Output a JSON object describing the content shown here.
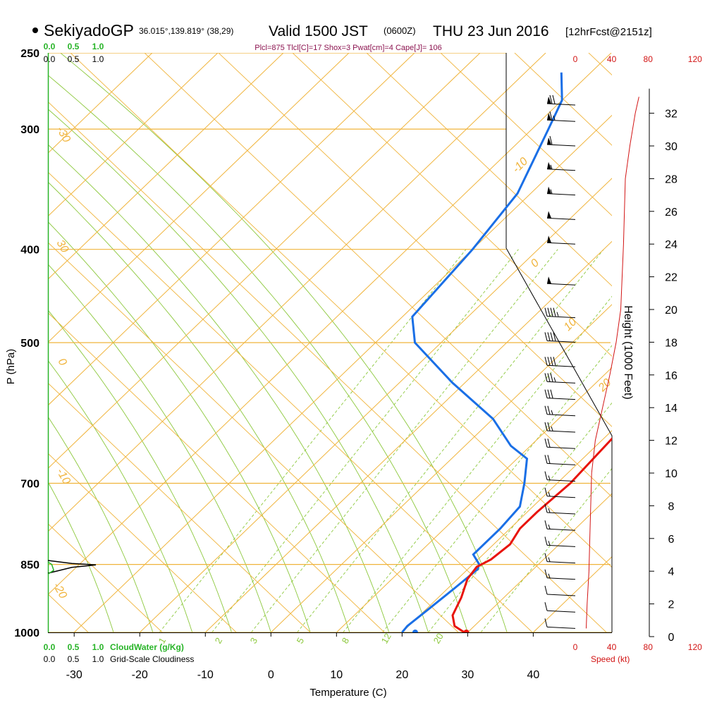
{
  "header": {
    "station": "SekiyadoGP",
    "coords": "36.015°,139.819° (38,29)",
    "valid_main": "Valid 1500 JST",
    "valid_z": "(0600Z)",
    "valid_date": "THU 23 Jun 2016",
    "fcst": "[12hrFcst@2151z]",
    "indices": "Plcl=875 Tlcl[C]=17 Shox=3 Pwat[cm]=4 Cape[J]= 106"
  },
  "colors": {
    "temp": "#e8140c",
    "dew": "#1a6fe6",
    "isotherm": "#f0b43c",
    "dry_adiabat": "#f0b43c",
    "moist_adiabat": "#8cc83c",
    "mixing": "#8cc83c",
    "parcel": "#8c1450",
    "cloud": "#28b428",
    "speed": "#d21414",
    "axis": "#000000"
  },
  "chart_data": {
    "type": "skewt",
    "title": "SekiyadoGP Valid 1500 JST (0600Z) THU 23 Jun 2016",
    "xlabel": "Temperature (C)",
    "ylabel": "P (hPa)",
    "xlim": [
      -34,
      52
    ],
    "ylim_hpa": [
      1000,
      250
    ],
    "x_ticks": [
      -30,
      -20,
      -10,
      0,
      10,
      20,
      30,
      40
    ],
    "p_ticks": [
      250,
      300,
      400,
      500,
      700,
      850,
      1000
    ],
    "isobars": [
      250,
      300,
      400,
      500,
      700,
      850,
      1000
    ],
    "isotherms": [
      -110,
      -100,
      -90,
      -80,
      -70,
      -60,
      -50,
      -40,
      -30,
      -20,
      -10,
      0,
      10,
      20,
      30,
      40
    ],
    "isotherm_labels": [
      {
        "text": "-10",
        "t": -10
      },
      {
        "text": "0",
        "t": 0
      },
      {
        "text": "10",
        "t": 10
      },
      {
        "text": "20",
        "t": 20
      },
      {
        "text": "30",
        "t": 30
      },
      {
        "text": "0",
        "t": 0
      },
      {
        "text": "-10",
        "t": -10
      },
      {
        "text": "-20",
        "t": -20
      },
      {
        "text": "-30",
        "t": -30
      }
    ],
    "mixing_ratio_labels": [
      {
        "text": "1",
        "w": 1
      },
      {
        "text": "2",
        "w": 2
      },
      {
        "text": "3",
        "w": 3
      },
      {
        "text": "5",
        "w": 5
      },
      {
        "text": "8",
        "w": 8
      },
      {
        "text": "12",
        "w": 12
      },
      {
        "text": "20",
        "w": 20
      }
    ],
    "temperature": {
      "name": "Temperature",
      "points": [
        {
          "p": 1000,
          "t": 29.5
        },
        {
          "p": 985,
          "t": 27.0
        },
        {
          "p": 960,
          "t": 25.0
        },
        {
          "p": 920,
          "t": 23.5
        },
        {
          "p": 880,
          "t": 21.5
        },
        {
          "p": 855,
          "t": 21.0
        },
        {
          "p": 840,
          "t": 22.0
        },
        {
          "p": 810,
          "t": 22.5
        },
        {
          "p": 780,
          "t": 21.5
        },
        {
          "p": 750,
          "t": 21.5
        },
        {
          "p": 700,
          "t": 22.0
        },
        {
          "p": 650,
          "t": 21.5
        },
        {
          "p": 600,
          "t": 21.0
        },
        {
          "p": 560,
          "t": 20.0
        },
        {
          "p": 500,
          "t": 17.0
        },
        {
          "p": 470,
          "t": 15.5
        },
        {
          "p": 400,
          "t": 10.5
        },
        {
          "p": 350,
          "t": 6.0
        },
        {
          "p": 300,
          "t": 1.0
        },
        {
          "p": 280,
          "t": -2.0
        },
        {
          "p": 262,
          "t": -4.5
        }
      ]
    },
    "dewpoint": {
      "name": "Dewpoint",
      "points": [
        {
          "p": 1000,
          "t": 20.0
        },
        {
          "p": 985,
          "t": 19.8
        },
        {
          "p": 950,
          "t": 20.3
        },
        {
          "p": 900,
          "t": 21.0
        },
        {
          "p": 860,
          "t": 21.5
        },
        {
          "p": 850,
          "t": 21.0
        },
        {
          "p": 830,
          "t": 18.5
        },
        {
          "p": 780,
          "t": 18.5
        },
        {
          "p": 740,
          "t": 18.0
        },
        {
          "p": 700,
          "t": 15.0
        },
        {
          "p": 660,
          "t": 11.5
        },
        {
          "p": 640,
          "t": 7.0
        },
        {
          "p": 600,
          "t": 0.0
        },
        {
          "p": 550,
          "t": -12.0
        },
        {
          "p": 500,
          "t": -24.0
        },
        {
          "p": 470,
          "t": -28.5
        },
        {
          "p": 400,
          "t": -30.0
        },
        {
          "p": 350,
          "t": -32.0
        },
        {
          "p": 300,
          "t": -37.5
        },
        {
          "p": 280,
          "t": -40.0
        },
        {
          "p": 262,
          "t": -44.5
        }
      ]
    },
    "parcel": {
      "name": "Parcel",
      "points": [
        {
          "p": 470,
          "t": 16.0
        },
        {
          "p": 420,
          "t": 13.5
        },
        {
          "p": 380,
          "t": 10.5
        },
        {
          "p": 332,
          "t": 6.0
        }
      ]
    },
    "surface_temp": 29.8,
    "surface_dew": 22.0,
    "cloud_water": {
      "label": "CloudWater (g/Kg)",
      "ticks": [
        "0.0",
        "0.5",
        "1.0"
      ],
      "points": [
        {
          "p": 845,
          "v": 0.0
        },
        {
          "p": 850,
          "v": 0.08
        },
        {
          "p": 862,
          "v": 0.12
        },
        {
          "p": 870,
          "v": 0.0
        }
      ]
    },
    "cloudiness": {
      "label": "Grid-Scale Cloudiness",
      "ticks": [
        "0.0",
        "0.5",
        "1.0"
      ],
      "points": [
        {
          "p": 842,
          "v": 0.0
        },
        {
          "p": 848,
          "v": 0.5
        },
        {
          "p": 851,
          "v": 1.0
        },
        {
          "p": 856,
          "v": 0.5
        },
        {
          "p": 868,
          "v": 0.0
        }
      ]
    },
    "height_axis": {
      "label": "Height (1000 Feet)",
      "ticks": [
        0,
        2,
        4,
        6,
        8,
        10,
        12,
        14,
        16,
        18,
        20,
        22,
        24,
        26,
        28,
        30,
        32
      ]
    },
    "wind_speed": {
      "label": "Speed (kt)",
      "ticks": [
        0,
        40,
        80,
        120
      ],
      "points": [
        {
          "h": 0.5,
          "s": 12
        },
        {
          "h": 2,
          "s": 13
        },
        {
          "h": 4,
          "s": 15
        },
        {
          "h": 6,
          "s": 16
        },
        {
          "h": 8,
          "s": 17
        },
        {
          "h": 10,
          "s": 18
        },
        {
          "h": 12,
          "s": 22
        },
        {
          "h": 14,
          "s": 30
        },
        {
          "h": 16,
          "s": 38
        },
        {
          "h": 18,
          "s": 45
        },
        {
          "h": 20,
          "s": 50
        },
        {
          "h": 24,
          "s": 53
        },
        {
          "h": 28,
          "s": 55
        },
        {
          "h": 30,
          "s": 60
        },
        {
          "h": 32,
          "s": 66
        },
        {
          "h": 33,
          "s": 70
        }
      ]
    },
    "wind_barbs": [
      {
        "h": 0.5,
        "spd": 12,
        "dir": 200
      },
      {
        "h": 1.5,
        "spd": 13,
        "dir": 205
      },
      {
        "h": 2.5,
        "spd": 14,
        "dir": 210
      },
      {
        "h": 3.5,
        "spd": 15,
        "dir": 210
      },
      {
        "h": 4.5,
        "spd": 16,
        "dir": 215
      },
      {
        "h": 5.5,
        "spd": 16,
        "dir": 220
      },
      {
        "h": 6.5,
        "spd": 17,
        "dir": 225
      },
      {
        "h": 7.5,
        "spd": 18,
        "dir": 230
      },
      {
        "h": 8.5,
        "spd": 18,
        "dir": 235
      },
      {
        "h": 9.5,
        "spd": 18,
        "dir": 240
      },
      {
        "h": 10.5,
        "spd": 20,
        "dir": 245
      },
      {
        "h": 11.5,
        "spd": 22,
        "dir": 250
      },
      {
        "h": 12.5,
        "spd": 25,
        "dir": 255
      },
      {
        "h": 13.5,
        "spd": 28,
        "dir": 260
      },
      {
        "h": 14.5,
        "spd": 32,
        "dir": 262
      },
      {
        "h": 15.5,
        "spd": 36,
        "dir": 265
      },
      {
        "h": 16.5,
        "spd": 40,
        "dir": 268
      },
      {
        "h": 18,
        "spd": 44,
        "dir": 270
      },
      {
        "h": 19.5,
        "spd": 48,
        "dir": 270
      },
      {
        "h": 21.5,
        "spd": 50,
        "dir": 272
      },
      {
        "h": 24,
        "spd": 52,
        "dir": 272
      },
      {
        "h": 25.5,
        "spd": 54,
        "dir": 274
      },
      {
        "h": 27,
        "spd": 55,
        "dir": 275
      },
      {
        "h": 28.5,
        "spd": 58,
        "dir": 276
      },
      {
        "h": 30,
        "spd": 62,
        "dir": 278
      },
      {
        "h": 31.5,
        "spd": 66,
        "dir": 280
      },
      {
        "h": 32.5,
        "spd": 70,
        "dir": 282
      }
    ]
  }
}
